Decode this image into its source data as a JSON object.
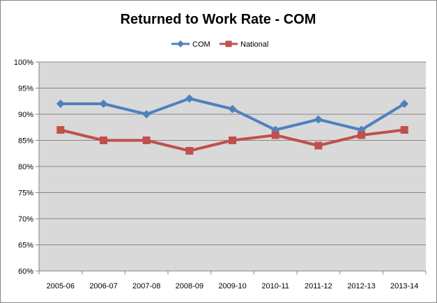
{
  "chart_data": {
    "type": "line",
    "title": "Returned to Work Rate - COM",
    "xlabel": "",
    "ylabel": "",
    "categories": [
      "2005-06",
      "2006-07",
      "2007-08",
      "2008-09",
      "2009-10",
      "2010-11",
      "2011-12",
      "2012-13",
      "2013-14"
    ],
    "ylim": [
      0.6,
      1.0
    ],
    "yticks": [
      0.6,
      0.65,
      0.7,
      0.75,
      0.8,
      0.85,
      0.9,
      0.95,
      1.0
    ],
    "ytick_labels": [
      "60%",
      "65%",
      "70%",
      "75%",
      "80%",
      "85%",
      "90%",
      "95%",
      "100%"
    ],
    "grid": true,
    "legend_position": "top",
    "series": [
      {
        "name": "COM",
        "color": "#4F81BD",
        "marker": "diamond",
        "values": [
          0.92,
          0.92,
          0.9,
          0.93,
          0.91,
          0.87,
          0.89,
          0.87,
          0.92
        ]
      },
      {
        "name": "National",
        "color": "#C0504D",
        "marker": "square",
        "values": [
          0.87,
          0.85,
          0.85,
          0.83,
          0.85,
          0.86,
          0.84,
          0.86,
          0.87
        ]
      }
    ],
    "plot_background": "#D9D9D9",
    "gridline_color": "#878787"
  }
}
